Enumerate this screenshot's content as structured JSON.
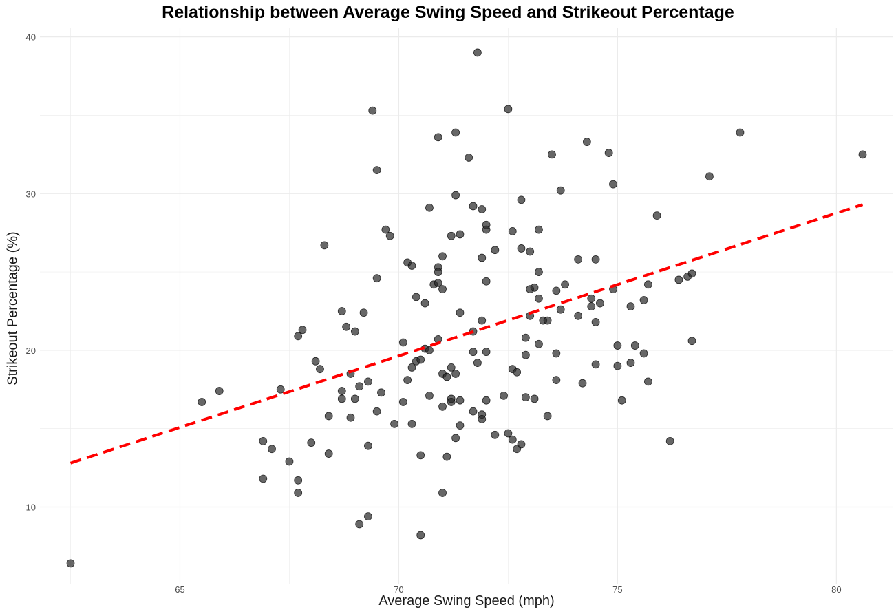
{
  "chart_data": {
    "type": "scatter",
    "title": "Relationship between Average Swing Speed and Strikeout Percentage",
    "xlabel": "Average Swing Speed (mph)",
    "ylabel": "Strikeout Percentage (%)",
    "xlim": [
      61.8,
      81.3
    ],
    "ylim": [
      5.1,
      40.6
    ],
    "x_ticks": [
      65,
      70,
      75,
      80
    ],
    "y_ticks": [
      10,
      20,
      30,
      40
    ],
    "grid": true,
    "colors": {
      "points": "#262626",
      "trend": "#ff0000",
      "grid": "#ebebeb",
      "tick_text": "#4d4d4d"
    },
    "trendline": {
      "style": "dashed",
      "x": [
        62.5,
        80.6
      ],
      "y": [
        12.8,
        29.3
      ]
    },
    "points": [
      {
        "x": 62.5,
        "y": 6.4
      },
      {
        "x": 65.5,
        "y": 16.7
      },
      {
        "x": 65.9,
        "y": 17.4
      },
      {
        "x": 66.9,
        "y": 14.2
      },
      {
        "x": 66.9,
        "y": 11.8
      },
      {
        "x": 67.1,
        "y": 13.7
      },
      {
        "x": 67.3,
        "y": 17.5
      },
      {
        "x": 67.5,
        "y": 12.9
      },
      {
        "x": 67.7,
        "y": 11.7
      },
      {
        "x": 67.7,
        "y": 10.9
      },
      {
        "x": 67.7,
        "y": 20.9
      },
      {
        "x": 67.8,
        "y": 21.3
      },
      {
        "x": 68.0,
        "y": 14.1
      },
      {
        "x": 68.1,
        "y": 19.3
      },
      {
        "x": 68.2,
        "y": 18.8
      },
      {
        "x": 68.3,
        "y": 26.7
      },
      {
        "x": 68.4,
        "y": 15.8
      },
      {
        "x": 68.4,
        "y": 13.4
      },
      {
        "x": 68.7,
        "y": 22.5
      },
      {
        "x": 68.7,
        "y": 17.4
      },
      {
        "x": 68.7,
        "y": 16.9
      },
      {
        "x": 68.8,
        "y": 21.5
      },
      {
        "x": 68.9,
        "y": 18.5
      },
      {
        "x": 68.9,
        "y": 15.7
      },
      {
        "x": 69.0,
        "y": 21.2
      },
      {
        "x": 69.0,
        "y": 16.9
      },
      {
        "x": 69.1,
        "y": 17.7
      },
      {
        "x": 69.1,
        "y": 8.9
      },
      {
        "x": 69.2,
        "y": 22.4
      },
      {
        "x": 69.3,
        "y": 18.0
      },
      {
        "x": 69.3,
        "y": 13.9
      },
      {
        "x": 69.3,
        "y": 9.4
      },
      {
        "x": 69.4,
        "y": 35.3
      },
      {
        "x": 69.5,
        "y": 31.5
      },
      {
        "x": 69.5,
        "y": 24.6
      },
      {
        "x": 69.5,
        "y": 16.1
      },
      {
        "x": 69.6,
        "y": 17.3
      },
      {
        "x": 69.7,
        "y": 27.7
      },
      {
        "x": 69.8,
        "y": 27.3
      },
      {
        "x": 69.9,
        "y": 15.3
      },
      {
        "x": 70.1,
        "y": 20.5
      },
      {
        "x": 70.1,
        "y": 16.7
      },
      {
        "x": 70.2,
        "y": 25.6
      },
      {
        "x": 70.2,
        "y": 18.1
      },
      {
        "x": 70.3,
        "y": 25.4
      },
      {
        "x": 70.3,
        "y": 18.9
      },
      {
        "x": 70.3,
        "y": 15.3
      },
      {
        "x": 70.4,
        "y": 23.4
      },
      {
        "x": 70.4,
        "y": 19.3
      },
      {
        "x": 70.5,
        "y": 19.4
      },
      {
        "x": 70.5,
        "y": 13.3
      },
      {
        "x": 70.5,
        "y": 8.2
      },
      {
        "x": 70.6,
        "y": 23.0
      },
      {
        "x": 70.6,
        "y": 20.1
      },
      {
        "x": 70.7,
        "y": 29.1
      },
      {
        "x": 70.7,
        "y": 20.0
      },
      {
        "x": 70.7,
        "y": 17.1
      },
      {
        "x": 70.8,
        "y": 24.2
      },
      {
        "x": 70.9,
        "y": 33.6
      },
      {
        "x": 70.9,
        "y": 25.3
      },
      {
        "x": 70.9,
        "y": 25.0
      },
      {
        "x": 70.9,
        "y": 24.3
      },
      {
        "x": 70.9,
        "y": 20.7
      },
      {
        "x": 71.0,
        "y": 26.0
      },
      {
        "x": 71.0,
        "y": 23.9
      },
      {
        "x": 71.0,
        "y": 18.5
      },
      {
        "x": 71.0,
        "y": 16.4
      },
      {
        "x": 71.0,
        "y": 10.9
      },
      {
        "x": 71.1,
        "y": 18.3
      },
      {
        "x": 71.1,
        "y": 13.2
      },
      {
        "x": 71.2,
        "y": 27.3
      },
      {
        "x": 71.2,
        "y": 18.9
      },
      {
        "x": 71.2,
        "y": 16.9
      },
      {
        "x": 71.2,
        "y": 16.7
      },
      {
        "x": 71.3,
        "y": 33.9
      },
      {
        "x": 71.3,
        "y": 29.9
      },
      {
        "x": 71.3,
        "y": 18.5
      },
      {
        "x": 71.3,
        "y": 14.4
      },
      {
        "x": 71.4,
        "y": 27.4
      },
      {
        "x": 71.4,
        "y": 22.4
      },
      {
        "x": 71.4,
        "y": 16.8
      },
      {
        "x": 71.4,
        "y": 15.2
      },
      {
        "x": 71.6,
        "y": 32.3
      },
      {
        "x": 71.7,
        "y": 29.2
      },
      {
        "x": 71.7,
        "y": 21.2
      },
      {
        "x": 71.7,
        "y": 19.9
      },
      {
        "x": 71.7,
        "y": 16.1
      },
      {
        "x": 71.8,
        "y": 39.0
      },
      {
        "x": 71.8,
        "y": 19.2
      },
      {
        "x": 71.9,
        "y": 29.0
      },
      {
        "x": 71.9,
        "y": 25.9
      },
      {
        "x": 71.9,
        "y": 21.9
      },
      {
        "x": 71.9,
        "y": 15.9
      },
      {
        "x": 71.9,
        "y": 15.6
      },
      {
        "x": 72.0,
        "y": 28.0
      },
      {
        "x": 72.0,
        "y": 27.7
      },
      {
        "x": 72.0,
        "y": 24.4
      },
      {
        "x": 72.0,
        "y": 19.9
      },
      {
        "x": 72.0,
        "y": 16.8
      },
      {
        "x": 72.2,
        "y": 26.4
      },
      {
        "x": 72.2,
        "y": 14.6
      },
      {
        "x": 72.4,
        "y": 17.1
      },
      {
        "x": 72.5,
        "y": 35.4
      },
      {
        "x": 72.5,
        "y": 14.7
      },
      {
        "x": 72.6,
        "y": 27.6
      },
      {
        "x": 72.6,
        "y": 18.8
      },
      {
        "x": 72.6,
        "y": 14.3
      },
      {
        "x": 72.7,
        "y": 18.6
      },
      {
        "x": 72.7,
        "y": 13.7
      },
      {
        "x": 72.8,
        "y": 29.6
      },
      {
        "x": 72.8,
        "y": 26.5
      },
      {
        "x": 72.8,
        "y": 14.0
      },
      {
        "x": 72.9,
        "y": 20.8
      },
      {
        "x": 72.9,
        "y": 19.7
      },
      {
        "x": 72.9,
        "y": 17.0
      },
      {
        "x": 73.0,
        "y": 26.3
      },
      {
        "x": 73.0,
        "y": 23.9
      },
      {
        "x": 73.0,
        "y": 22.2
      },
      {
        "x": 73.1,
        "y": 24.0
      },
      {
        "x": 73.1,
        "y": 16.9
      },
      {
        "x": 73.2,
        "y": 27.7
      },
      {
        "x": 73.2,
        "y": 25.0
      },
      {
        "x": 73.2,
        "y": 23.3
      },
      {
        "x": 73.2,
        "y": 20.4
      },
      {
        "x": 73.3,
        "y": 21.9
      },
      {
        "x": 73.4,
        "y": 21.9
      },
      {
        "x": 73.4,
        "y": 15.8
      },
      {
        "x": 73.5,
        "y": 32.5
      },
      {
        "x": 73.6,
        "y": 23.8
      },
      {
        "x": 73.6,
        "y": 19.8
      },
      {
        "x": 73.6,
        "y": 18.1
      },
      {
        "x": 73.7,
        "y": 30.2
      },
      {
        "x": 73.7,
        "y": 22.6
      },
      {
        "x": 73.8,
        "y": 24.2
      },
      {
        "x": 74.1,
        "y": 25.8
      },
      {
        "x": 74.1,
        "y": 22.2
      },
      {
        "x": 74.2,
        "y": 17.9
      },
      {
        "x": 74.3,
        "y": 33.3
      },
      {
        "x": 74.4,
        "y": 23.3
      },
      {
        "x": 74.4,
        "y": 22.8
      },
      {
        "x": 74.5,
        "y": 25.8
      },
      {
        "x": 74.5,
        "y": 21.8
      },
      {
        "x": 74.5,
        "y": 19.1
      },
      {
        "x": 74.6,
        "y": 23.0
      },
      {
        "x": 74.8,
        "y": 32.6
      },
      {
        "x": 74.9,
        "y": 30.6
      },
      {
        "x": 74.9,
        "y": 23.9
      },
      {
        "x": 75.0,
        "y": 20.3
      },
      {
        "x": 75.0,
        "y": 19.0
      },
      {
        "x": 75.1,
        "y": 16.8
      },
      {
        "x": 75.3,
        "y": 22.8
      },
      {
        "x": 75.3,
        "y": 19.2
      },
      {
        "x": 75.4,
        "y": 20.3
      },
      {
        "x": 75.6,
        "y": 23.2
      },
      {
        "x": 75.6,
        "y": 19.8
      },
      {
        "x": 75.7,
        "y": 24.2
      },
      {
        "x": 75.7,
        "y": 18.0
      },
      {
        "x": 75.9,
        "y": 28.6
      },
      {
        "x": 76.2,
        "y": 14.2
      },
      {
        "x": 76.4,
        "y": 24.5
      },
      {
        "x": 76.6,
        "y": 24.7
      },
      {
        "x": 76.7,
        "y": 24.9
      },
      {
        "x": 76.7,
        "y": 20.6
      },
      {
        "x": 77.1,
        "y": 31.1
      },
      {
        "x": 77.8,
        "y": 33.9
      },
      {
        "x": 80.6,
        "y": 32.5
      }
    ]
  }
}
